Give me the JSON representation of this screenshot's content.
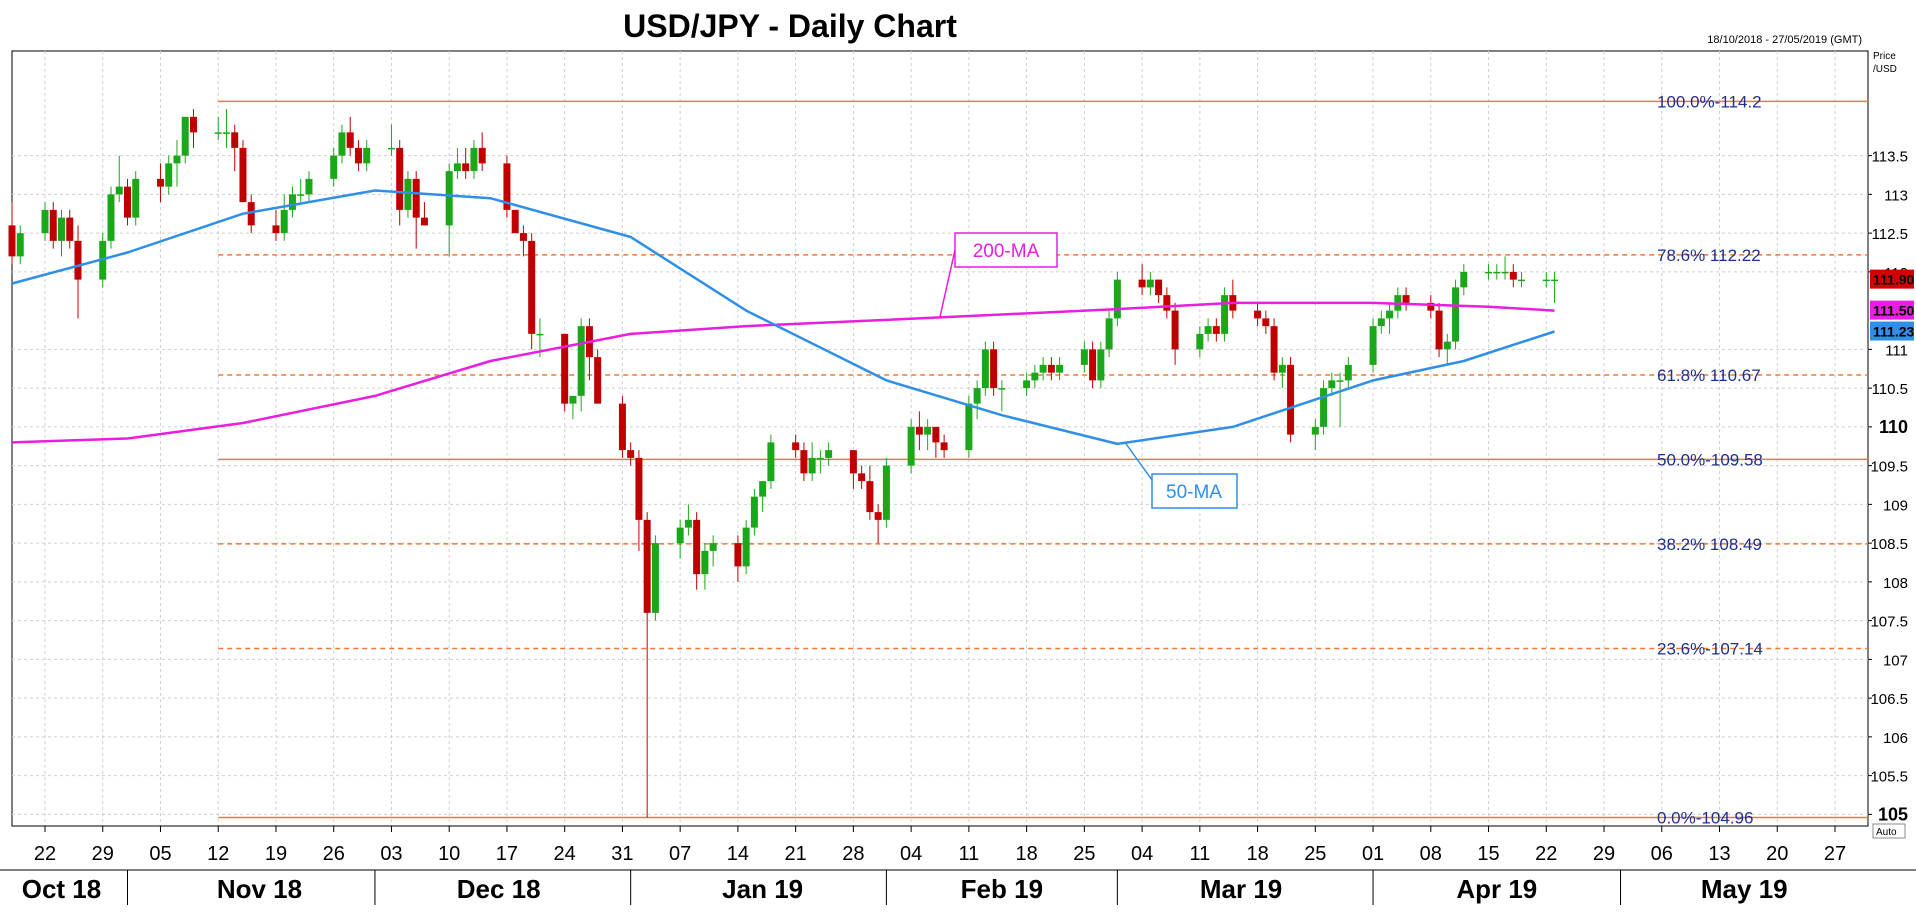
{
  "chart_data": {
    "type": "candlestick",
    "title": "USD/JPY - Daily Chart",
    "date_range": "18/10/2018 - 27/05/2019 (GMT)",
    "y_unit": "Price\n/USD",
    "y_unit_lines": [
      "Price",
      "/USD"
    ],
    "ylim": [
      104.85,
      114.85
    ],
    "y_ticks": [
      {
        "v": 113.5,
        "label": "113.5"
      },
      {
        "v": 113,
        "label": "113"
      },
      {
        "v": 112.5,
        "label": "112.5"
      },
      {
        "v": 112,
        "label": "112"
      },
      {
        "v": 111,
        "label": "111"
      },
      {
        "v": 110.5,
        "label": "110.5"
      },
      {
        "v": 110,
        "label": "110",
        "bold": true
      },
      {
        "v": 109.5,
        "label": "109.5"
      },
      {
        "v": 109,
        "label": "109"
      },
      {
        "v": 108.5,
        "label": "108.5"
      },
      {
        "v": 108,
        "label": "108"
      },
      {
        "v": 107.5,
        "label": "107.5"
      },
      {
        "v": 107,
        "label": "107"
      },
      {
        "v": 106.5,
        "label": "106.5"
      },
      {
        "v": 106,
        "label": "106"
      },
      {
        "v": 105.5,
        "label": "105.5"
      },
      {
        "v": 105,
        "label": "105",
        "bold": true
      }
    ],
    "x_days": [
      "22",
      "29",
      "05",
      "12",
      "19",
      "26",
      "03",
      "10",
      "17",
      "24",
      "31",
      "07",
      "14",
      "21",
      "28",
      "04",
      "11",
      "18",
      "25",
      "04",
      "11",
      "18",
      "25",
      "01",
      "08",
      "15",
      "22",
      "29",
      "06",
      "13",
      "20",
      "27"
    ],
    "x_day_dates": [
      "2018-10-22",
      "2018-10-29",
      "2018-11-05",
      "2018-11-12",
      "2018-11-19",
      "2018-11-26",
      "2018-12-03",
      "2018-12-10",
      "2018-12-17",
      "2018-12-24",
      "2018-12-31",
      "2019-01-07",
      "2019-01-14",
      "2019-01-21",
      "2019-01-28",
      "2019-02-04",
      "2019-02-11",
      "2019-02-18",
      "2019-02-25",
      "2019-03-04",
      "2019-03-11",
      "2019-03-18",
      "2019-03-25",
      "2019-04-01",
      "2019-04-08",
      "2019-04-15",
      "2019-04-22",
      "2019-04-29",
      "2019-05-06",
      "2019-05-13",
      "2019-05-20",
      "2019-05-27"
    ],
    "x_months": [
      {
        "label": "Oct 18",
        "date": "2018-10-24"
      },
      {
        "label": "Nov 18",
        "date": "2018-11-17"
      },
      {
        "label": "Dec 18",
        "date": "2018-12-16"
      },
      {
        "label": "Jan 19",
        "date": "2019-01-17"
      },
      {
        "label": "Feb 19",
        "date": "2019-02-15"
      },
      {
        "label": "Mar 19",
        "date": "2019-03-16"
      },
      {
        "label": "Apr 19",
        "date": "2019-04-16"
      },
      {
        "label": "May 19",
        "date": "2019-05-16"
      }
    ],
    "month_separators": [
      "2018-11-01",
      "2018-12-01",
      "2019-01-01",
      "2019-02-01",
      "2019-03-01",
      "2019-04-01",
      "2019-05-01"
    ],
    "fib_levels": [
      {
        "pct": "100.0%",
        "value": "114.2",
        "v": 114.2,
        "style": "solid",
        "label": "100.0%-114.2"
      },
      {
        "pct": "78.6%",
        "value": "112.22",
        "v": 112.22,
        "style": "dashed",
        "label": "78.6%  112.22"
      },
      {
        "pct": "61.8%",
        "value": "110.67",
        "v": 110.67,
        "style": "dashed",
        "label": "61.8%  110.67"
      },
      {
        "pct": "50.0%",
        "value": "109.58",
        "v": 109.58,
        "style": "solid",
        "label": "50.0%-109.58"
      },
      {
        "pct": "38.2%",
        "value": "108.49",
        "v": 108.49,
        "style": "dashed",
        "label": "38.2%  108.49"
      },
      {
        "pct": "23.6%",
        "value": "107.14",
        "v": 107.14,
        "style": "dashed",
        "label": "23.6%-107.14"
      },
      {
        "pct": "0.0%",
        "value": "104.96",
        "v": 104.96,
        "style": "solid",
        "label": "0.0%-104.96"
      }
    ],
    "fib_start_date": "2018-11-12",
    "ma200": {
      "name": "200-MA",
      "color": "#e81ee0",
      "points": [
        [
          "2018-10-18",
          109.8
        ],
        [
          "2018-11-01",
          109.85
        ],
        [
          "2018-11-15",
          110.05
        ],
        [
          "2018-12-01",
          110.4
        ],
        [
          "2018-12-15",
          110.85
        ],
        [
          "2019-01-01",
          111.2
        ],
        [
          "2019-01-15",
          111.3
        ],
        [
          "2019-02-01",
          111.38
        ],
        [
          "2019-02-15",
          111.45
        ],
        [
          "2019-03-01",
          111.52
        ],
        [
          "2019-03-15",
          111.6
        ],
        [
          "2019-04-01",
          111.6
        ],
        [
          "2019-04-15",
          111.55
        ],
        [
          "2019-04-23",
          111.5
        ]
      ]
    },
    "ma50": {
      "name": "50-MA",
      "color": "#2f8fe8",
      "points": [
        [
          "2018-10-18",
          111.85
        ],
        [
          "2018-11-01",
          112.25
        ],
        [
          "2018-11-15",
          112.75
        ],
        [
          "2018-12-01",
          113.05
        ],
        [
          "2018-12-15",
          112.95
        ],
        [
          "2019-01-01",
          112.45
        ],
        [
          "2019-01-15",
          111.5
        ],
        [
          "2019-02-01",
          110.6
        ],
        [
          "2019-02-15",
          110.15
        ],
        [
          "2019-03-01",
          109.78
        ],
        [
          "2019-03-15",
          110.0
        ],
        [
          "2019-04-01",
          110.6
        ],
        [
          "2019-04-12",
          110.85
        ],
        [
          "2019-04-23",
          111.23
        ]
      ]
    },
    "price_tags": [
      {
        "value": "111.90",
        "v": 111.9,
        "color": "#d40000"
      },
      {
        "value": "111.50",
        "v": 111.5,
        "color": "#e81ee0"
      },
      {
        "value": "111.23",
        "v": 111.23,
        "color": "#2f8fe8"
      }
    ],
    "auto_label": "Auto",
    "up_color": "#1aa81a",
    "down_color": "#c00000",
    "candles": [
      [
        "2018-10-18",
        112.6,
        112.9,
        112.1,
        112.2
      ],
      [
        "2018-10-19",
        112.2,
        112.6,
        112.1,
        112.5
      ],
      [
        "2018-10-22",
        112.5,
        112.9,
        112.4,
        112.8
      ],
      [
        "2018-10-23",
        112.8,
        112.9,
        112.3,
        112.4
      ],
      [
        "2018-10-24",
        112.4,
        112.8,
        112.2,
        112.7
      ],
      [
        "2018-10-25",
        112.7,
        112.8,
        112.3,
        112.4
      ],
      [
        "2018-10-26",
        112.4,
        112.6,
        111.4,
        111.9
      ],
      [
        "2018-10-29",
        111.9,
        112.5,
        111.8,
        112.4
      ],
      [
        "2018-10-30",
        112.4,
        113.1,
        112.3,
        113.0
      ],
      [
        "2018-10-31",
        113.0,
        113.5,
        112.9,
        113.1
      ],
      [
        "2018-11-01",
        113.1,
        113.2,
        112.6,
        112.7
      ],
      [
        "2018-11-02",
        112.7,
        113.3,
        112.6,
        113.2
      ],
      [
        "2018-11-05",
        113.2,
        113.4,
        112.9,
        113.1
      ],
      [
        "2018-11-06",
        113.1,
        113.5,
        113.0,
        113.4
      ],
      [
        "2018-11-07",
        113.4,
        113.7,
        113.1,
        113.5
      ],
      [
        "2018-11-08",
        113.5,
        114.0,
        113.4,
        114.0
      ],
      [
        "2018-11-09",
        114.0,
        114.1,
        113.6,
        113.8
      ],
      [
        "2018-11-12",
        113.8,
        114.0,
        113.7,
        113.8
      ],
      [
        "2018-11-13",
        113.8,
        114.1,
        113.6,
        113.8
      ],
      [
        "2018-11-14",
        113.8,
        113.9,
        113.3,
        113.6
      ],
      [
        "2018-11-15",
        113.6,
        113.7,
        112.9,
        112.9
      ],
      [
        "2018-11-16",
        112.9,
        113.0,
        112.5,
        112.6
      ],
      [
        "2018-11-19",
        112.6,
        112.8,
        112.4,
        112.5
      ],
      [
        "2018-11-20",
        112.5,
        113.0,
        112.4,
        112.8
      ],
      [
        "2018-11-21",
        112.8,
        113.1,
        112.7,
        113.0
      ],
      [
        "2018-11-22",
        113.0,
        113.2,
        112.9,
        113.0
      ],
      [
        "2018-11-23",
        113.0,
        113.3,
        112.9,
        113.2
      ],
      [
        "2018-11-26",
        113.2,
        113.6,
        113.1,
        113.5
      ],
      [
        "2018-11-27",
        113.5,
        113.9,
        113.4,
        113.8
      ],
      [
        "2018-11-28",
        113.8,
        114.0,
        113.5,
        113.6
      ],
      [
        "2018-11-29",
        113.6,
        113.7,
        113.3,
        113.4
      ],
      [
        "2018-11-30",
        113.4,
        113.7,
        113.3,
        113.6
      ],
      [
        "2018-12-03",
        113.6,
        113.9,
        113.5,
        113.6
      ],
      [
        "2018-12-04",
        113.6,
        113.7,
        112.6,
        112.8
      ],
      [
        "2018-12-05",
        112.8,
        113.3,
        112.7,
        113.2
      ],
      [
        "2018-12-06",
        113.2,
        113.3,
        112.3,
        112.7
      ],
      [
        "2018-12-07",
        112.7,
        112.9,
        112.6,
        112.6
      ],
      [
        "2018-12-10",
        112.6,
        113.4,
        112.2,
        113.3
      ],
      [
        "2018-12-11",
        113.3,
        113.6,
        113.2,
        113.4
      ],
      [
        "2018-12-12",
        113.4,
        113.6,
        113.2,
        113.3
      ],
      [
        "2018-12-13",
        113.3,
        113.7,
        113.2,
        113.6
      ],
      [
        "2018-12-14",
        113.6,
        113.8,
        113.3,
        113.4
      ],
      [
        "2018-12-17",
        113.4,
        113.5,
        112.7,
        112.8
      ],
      [
        "2018-12-18",
        112.8,
        112.8,
        112.5,
        112.5
      ],
      [
        "2018-12-19",
        112.5,
        112.6,
        112.2,
        112.4
      ],
      [
        "2018-12-20",
        112.4,
        112.5,
        111.0,
        111.2
      ],
      [
        "2018-12-21",
        111.2,
        111.4,
        110.9,
        111.2
      ],
      [
        "2018-12-24",
        111.2,
        111.2,
        110.2,
        110.3
      ],
      [
        "2018-12-25",
        110.3,
        110.4,
        110.1,
        110.4
      ],
      [
        "2018-12-26",
        110.4,
        111.4,
        110.2,
        111.3
      ],
      [
        "2018-12-27",
        111.3,
        111.4,
        110.6,
        110.9
      ],
      [
        "2018-12-28",
        110.9,
        111.0,
        110.3,
        110.3
      ],
      [
        "2018-12-31",
        110.3,
        110.4,
        109.6,
        109.7
      ],
      [
        "2019-01-01",
        109.7,
        109.8,
        109.5,
        109.6
      ],
      [
        "2019-01-02",
        109.6,
        109.7,
        108.4,
        108.8
      ],
      [
        "2019-01-03",
        108.8,
        108.9,
        104.96,
        107.6
      ],
      [
        "2019-01-04",
        107.6,
        108.6,
        107.5,
        108.5
      ],
      [
        "2019-01-07",
        108.5,
        108.8,
        108.3,
        108.7
      ],
      [
        "2019-01-08",
        108.7,
        109.0,
        108.6,
        108.8
      ],
      [
        "2019-01-09",
        108.8,
        108.9,
        107.9,
        108.1
      ],
      [
        "2019-01-10",
        108.1,
        108.5,
        107.9,
        108.4
      ],
      [
        "2019-01-11",
        108.4,
        108.6,
        108.2,
        108.5
      ],
      [
        "2019-01-14",
        108.5,
        108.6,
        108.0,
        108.2
      ],
      [
        "2019-01-15",
        108.2,
        108.8,
        108.1,
        108.7
      ],
      [
        "2019-01-16",
        108.7,
        109.2,
        108.6,
        109.1
      ],
      [
        "2019-01-17",
        109.1,
        109.3,
        108.9,
        109.3
      ],
      [
        "2019-01-18",
        109.3,
        109.9,
        109.2,
        109.8
      ],
      [
        "2019-01-21",
        109.8,
        109.9,
        109.6,
        109.7
      ],
      [
        "2019-01-22",
        109.7,
        109.8,
        109.3,
        109.4
      ],
      [
        "2019-01-23",
        109.4,
        109.8,
        109.3,
        109.6
      ],
      [
        "2019-01-24",
        109.6,
        109.7,
        109.4,
        109.6
      ],
      [
        "2019-01-25",
        109.6,
        109.8,
        109.5,
        109.7
      ],
      [
        "2019-01-28",
        109.7,
        109.7,
        109.2,
        109.4
      ],
      [
        "2019-01-29",
        109.4,
        109.5,
        109.2,
        109.3
      ],
      [
        "2019-01-30",
        109.3,
        109.5,
        108.8,
        108.9
      ],
      [
        "2019-01-31",
        108.9,
        109.0,
        108.5,
        108.8
      ],
      [
        "2019-02-01",
        108.8,
        109.6,
        108.7,
        109.5
      ],
      [
        "2019-02-04",
        109.5,
        110.1,
        109.4,
        110.0
      ],
      [
        "2019-02-05",
        110.0,
        110.2,
        109.7,
        109.9
      ],
      [
        "2019-02-06",
        109.9,
        110.1,
        109.7,
        110.0
      ],
      [
        "2019-02-07",
        110.0,
        110.0,
        109.6,
        109.8
      ],
      [
        "2019-02-08",
        109.8,
        109.9,
        109.6,
        109.7
      ],
      [
        "2019-02-11",
        109.7,
        110.4,
        109.6,
        110.3
      ],
      [
        "2019-02-12",
        110.3,
        110.6,
        110.1,
        110.5
      ],
      [
        "2019-02-13",
        110.5,
        111.1,
        110.4,
        111.0
      ],
      [
        "2019-02-14",
        111.0,
        111.1,
        110.4,
        110.5
      ],
      [
        "2019-02-15",
        110.5,
        110.6,
        110.2,
        110.5
      ],
      [
        "2019-02-18",
        110.5,
        110.7,
        110.4,
        110.6
      ],
      [
        "2019-02-19",
        110.6,
        110.8,
        110.5,
        110.7
      ],
      [
        "2019-02-20",
        110.7,
        110.9,
        110.6,
        110.8
      ],
      [
        "2019-02-21",
        110.8,
        110.9,
        110.6,
        110.7
      ],
      [
        "2019-02-22",
        110.7,
        110.9,
        110.6,
        110.8
      ],
      [
        "2019-02-25",
        110.8,
        111.1,
        110.7,
        111.0
      ],
      [
        "2019-02-26",
        111.0,
        111.1,
        110.5,
        110.6
      ],
      [
        "2019-02-27",
        110.6,
        111.1,
        110.5,
        111.0
      ],
      [
        "2019-02-28",
        111.0,
        111.5,
        110.9,
        111.4
      ],
      [
        "2019-03-01",
        111.4,
        112.0,
        111.3,
        111.9
      ],
      [
        "2019-03-04",
        111.9,
        112.1,
        111.7,
        111.8
      ],
      [
        "2019-03-05",
        111.8,
        112.0,
        111.7,
        111.9
      ],
      [
        "2019-03-06",
        111.9,
        111.9,
        111.6,
        111.7
      ],
      [
        "2019-03-07",
        111.7,
        111.8,
        111.4,
        111.5
      ],
      [
        "2019-03-08",
        111.5,
        111.6,
        110.8,
        111.0
      ],
      [
        "2019-03-11",
        111.0,
        111.3,
        110.9,
        111.2
      ],
      [
        "2019-03-12",
        111.2,
        111.4,
        111.1,
        111.3
      ],
      [
        "2019-03-13",
        111.3,
        111.4,
        111.1,
        111.2
      ],
      [
        "2019-03-14",
        111.2,
        111.8,
        111.1,
        111.7
      ],
      [
        "2019-03-15",
        111.7,
        111.9,
        111.4,
        111.5
      ],
      [
        "2019-03-18",
        111.5,
        111.6,
        111.3,
        111.4
      ],
      [
        "2019-03-19",
        111.4,
        111.5,
        111.2,
        111.3
      ],
      [
        "2019-03-20",
        111.3,
        111.4,
        110.6,
        110.7
      ],
      [
        "2019-03-21",
        110.7,
        110.9,
        110.5,
        110.8
      ],
      [
        "2019-03-22",
        110.8,
        110.9,
        109.8,
        109.9
      ],
      [
        "2019-03-25",
        109.9,
        110.1,
        109.7,
        110.0
      ],
      [
        "2019-03-26",
        110.0,
        110.6,
        109.9,
        110.5
      ],
      [
        "2019-03-27",
        110.5,
        110.7,
        110.4,
        110.6
      ],
      [
        "2019-03-28",
        110.6,
        110.7,
        110.0,
        110.6
      ],
      [
        "2019-03-29",
        110.6,
        110.9,
        110.5,
        110.8
      ],
      [
        "2019-04-01",
        110.8,
        111.4,
        110.7,
        111.3
      ],
      [
        "2019-04-02",
        111.3,
        111.5,
        111.2,
        111.4
      ],
      [
        "2019-04-03",
        111.4,
        111.6,
        111.2,
        111.5
      ],
      [
        "2019-04-04",
        111.5,
        111.8,
        111.4,
        111.7
      ],
      [
        "2019-04-05",
        111.7,
        111.8,
        111.5,
        111.6
      ],
      [
        "2019-04-08",
        111.6,
        111.7,
        111.4,
        111.5
      ],
      [
        "2019-04-09",
        111.5,
        111.6,
        110.9,
        111.0
      ],
      [
        "2019-04-10",
        111.0,
        111.2,
        110.8,
        111.1
      ],
      [
        "2019-04-11",
        111.1,
        111.9,
        111.0,
        111.8
      ],
      [
        "2019-04-12",
        111.8,
        112.1,
        111.7,
        112.0
      ],
      [
        "2019-04-15",
        112.0,
        112.1,
        111.9,
        112.0
      ],
      [
        "2019-04-16",
        112.0,
        112.1,
        111.9,
        112.0
      ],
      [
        "2019-04-17",
        112.0,
        112.2,
        111.9,
        112.0
      ],
      [
        "2019-04-18",
        112.0,
        112.1,
        111.8,
        111.9
      ],
      [
        "2019-04-19",
        111.9,
        112.0,
        111.8,
        111.9
      ],
      [
        "2019-04-22",
        111.9,
        112.0,
        111.8,
        111.9
      ],
      [
        "2019-04-23",
        111.9,
        112.0,
        111.6,
        111.9
      ]
    ]
  }
}
